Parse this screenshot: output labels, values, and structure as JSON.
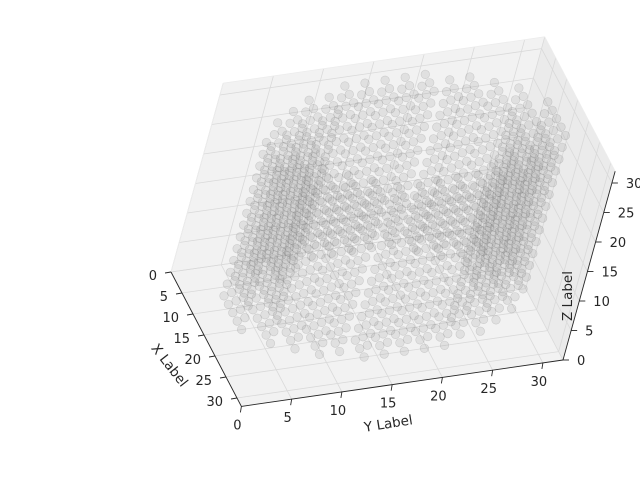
{
  "chart_data": {
    "type": "scatter3d",
    "title": "",
    "xlabel": "X Label",
    "ylabel": "Y Label",
    "zlabel": "Z Label",
    "xlim": [
      0,
      32
    ],
    "ylim": [
      0,
      32
    ],
    "zlim": [
      0,
      32
    ],
    "x_ticks": [
      0,
      5,
      10,
      15,
      20,
      25,
      30
    ],
    "y_ticks": [
      0,
      5,
      10,
      15,
      20,
      25,
      30
    ],
    "z_ticks": [
      0,
      5,
      10,
      15,
      20,
      25,
      30
    ],
    "grid": true,
    "marker_color": "#555555",
    "shape": {
      "kind": "voxelized ring (annulus) about the vertical axis",
      "center_xy": [
        16,
        16
      ],
      "outer_radius": 15,
      "inner_radius": 10,
      "z_range": [
        4,
        30
      ],
      "grid_step": 2
    }
  }
}
